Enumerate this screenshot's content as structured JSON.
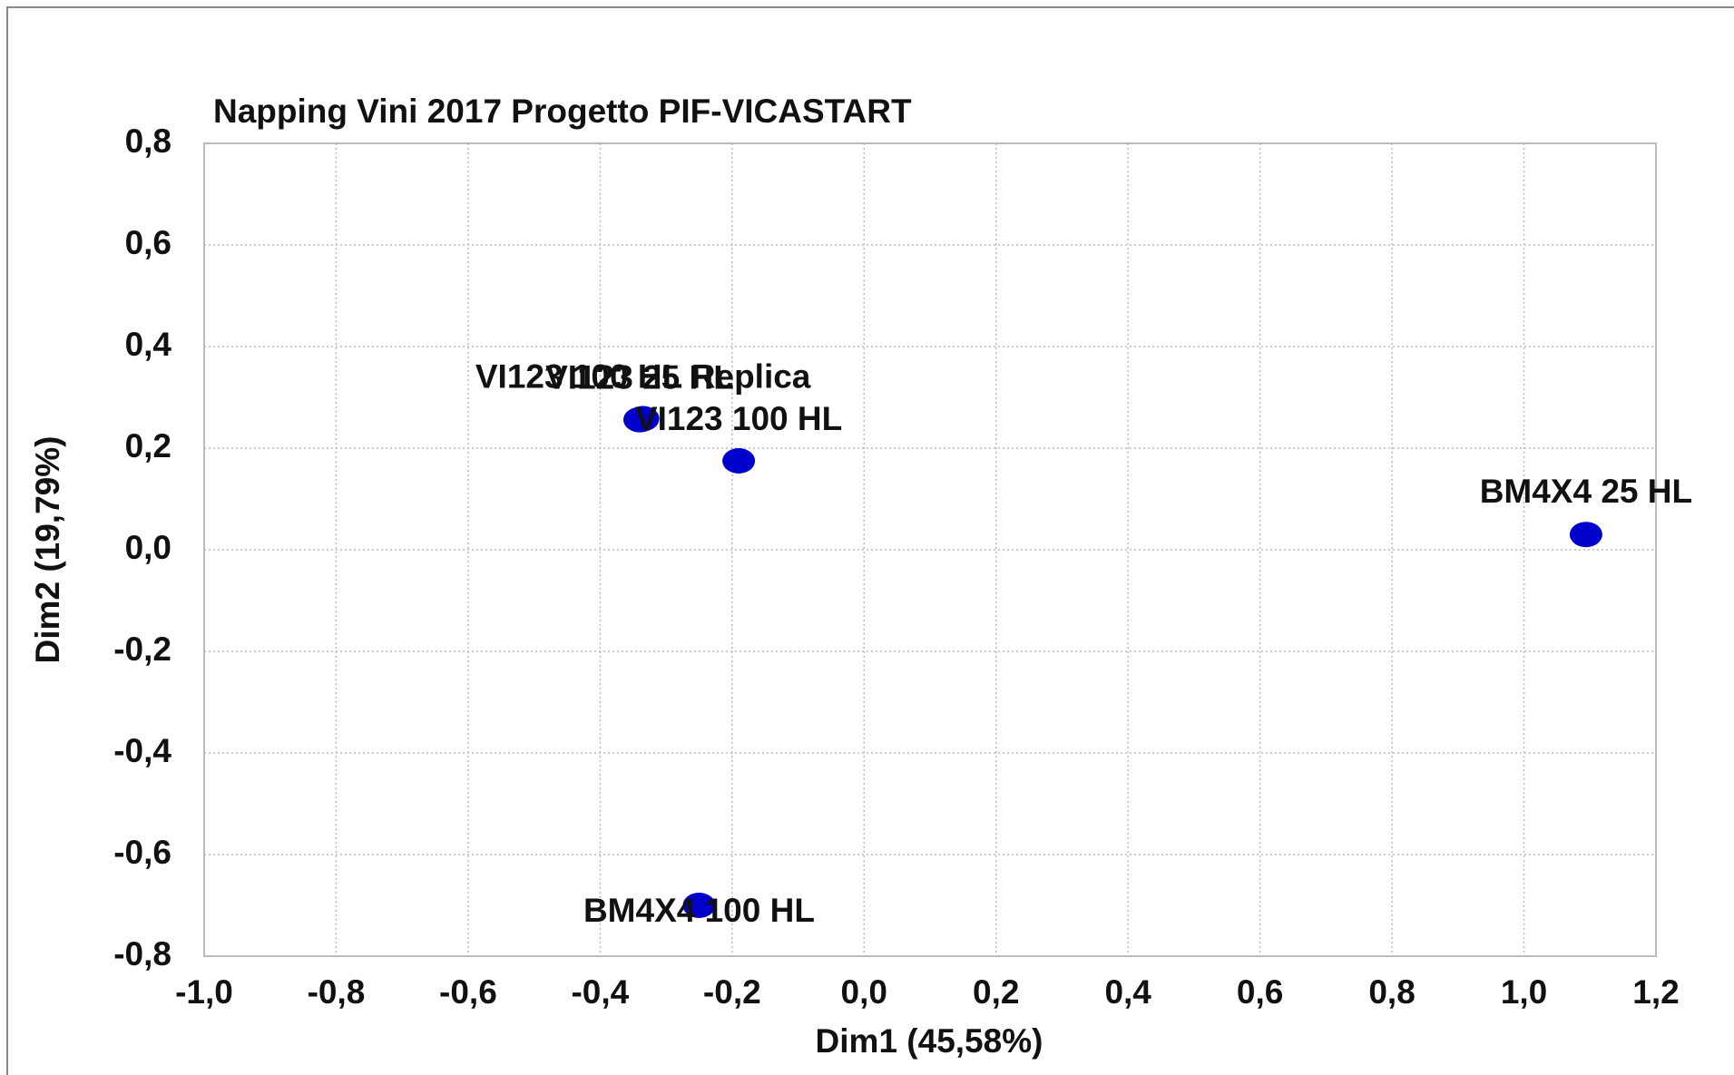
{
  "chart_data": {
    "type": "scatter",
    "title": "Napping Vini 2017 Progetto PIF-VICASTART",
    "xlabel": "Dim1 (45,58%)",
    "ylabel": "Dim2 (19,79%)",
    "labels": [
      "BM4X4 100 HL",
      "BM4X4 25 HL",
      "VI123 100 HL",
      "VI123 25 HL",
      "VI123 100 HL Replica"
    ],
    "x": [
      -0.25,
      1.094,
      -0.19,
      -0.34,
      -0.335
    ],
    "y": [
      -0.7,
      0.03,
      0.175,
      0.256,
      0.258
    ],
    "color": "#0000cc",
    "xlim": [
      -1.0,
      1.2
    ],
    "ylim": [
      -0.8,
      0.8
    ],
    "xticks": [
      {
        "value": -1.0,
        "label": "-1,0"
      },
      {
        "value": -0.8,
        "label": "-0,8"
      },
      {
        "value": -0.6,
        "label": "-0,6"
      },
      {
        "value": -0.4,
        "label": "-0,4"
      },
      {
        "value": -0.2,
        "label": "-0,2"
      },
      {
        "value": 0.0,
        "label": "0,0"
      },
      {
        "value": 0.2,
        "label": "0,2"
      },
      {
        "value": 0.4,
        "label": "0,4"
      },
      {
        "value": 0.6,
        "label": "0,6"
      },
      {
        "value": 0.8,
        "label": "0,8"
      },
      {
        "value": 1.0,
        "label": "1,0"
      },
      {
        "value": 1.2,
        "label": "1,2"
      }
    ],
    "yticks": [
      {
        "value": -0.8,
        "label": "-0,8"
      },
      {
        "value": -0.6,
        "label": "-0,6"
      },
      {
        "value": -0.4,
        "label": "-0,4"
      },
      {
        "value": -0.2,
        "label": "-0,2"
      },
      {
        "value": 0.0,
        "label": "0,0"
      },
      {
        "value": 0.2,
        "label": "0,2"
      },
      {
        "value": 0.4,
        "label": "0,4"
      },
      {
        "value": 0.6,
        "label": "0,6"
      },
      {
        "value": 0.8,
        "label": "0,8"
      }
    ],
    "grid": true
  }
}
